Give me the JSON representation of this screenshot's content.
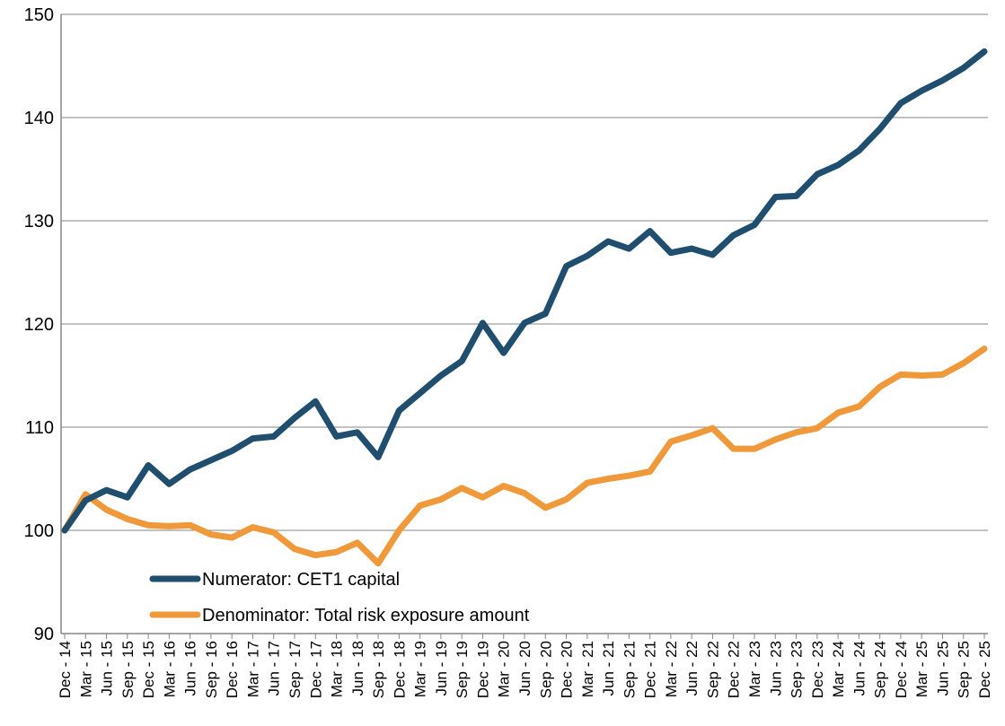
{
  "chart_data": {
    "type": "line",
    "title": "",
    "xlabel": "",
    "ylabel": "",
    "ylim": [
      90,
      150
    ],
    "yticks": [
      90,
      100,
      110,
      120,
      130,
      140,
      150
    ],
    "grid": "horizontal",
    "legend_position": "bottom-left",
    "x": [
      "Dec - 14",
      "Mar - 15",
      "Jun - 15",
      "Sep - 15",
      "Dec - 15",
      "Mar - 16",
      "Jun - 16",
      "Sep - 16",
      "Dec - 16",
      "Mar - 17",
      "Jun - 17",
      "Sep - 17",
      "Dec - 17",
      "Mar - 18",
      "Jun - 18",
      "Sep - 18",
      "Dec - 18",
      "Mar - 19",
      "Jun - 19",
      "Sep - 19",
      "Dec - 19",
      "Mar - 20",
      "Jun - 20",
      "Sep - 20",
      "Dec - 20",
      "Mar - 21",
      "Jun - 21",
      "Sep - 21",
      "Dec - 21",
      "Mar - 22",
      "Jun - 22",
      "Sep - 22",
      "Dec - 22",
      "Mar - 23",
      "Jun - 23",
      "Sep - 23",
      "Dec - 23",
      "Mar - 24",
      "Jun - 24",
      "Sep - 24",
      "Dec - 24",
      "Mar - 25",
      "Jun - 25",
      "Sep - 25",
      "Dec - 25"
    ],
    "series": [
      {
        "name": "Numerator: CET1 capital",
        "color": "#1f4e6e",
        "values": [
          100,
          102.9,
          103.9,
          103.2,
          106.3,
          104.5,
          105.9,
          106.8,
          107.7,
          108.9,
          109.1,
          110.9,
          112.5,
          109.1,
          109.5,
          107.1,
          111.6,
          113.3,
          115.0,
          116.4,
          120.1,
          117.2,
          120.1,
          121.0,
          125.6,
          126.6,
          128.0,
          127.3,
          129.0,
          126.9,
          127.3,
          126.7,
          128.6,
          129.6,
          132.3,
          132.4,
          134.5,
          135.4,
          136.8,
          138.9,
          141.4,
          142.6,
          143.6,
          144.8,
          146.4
        ]
      },
      {
        "name": "Denominator: Total risk exposure amount",
        "color": "#f0993a",
        "values": [
          100,
          103.5,
          102.0,
          101.1,
          100.5,
          100.4,
          100.5,
          99.6,
          99.3,
          100.3,
          99.8,
          98.2,
          97.6,
          97.9,
          98.8,
          96.8,
          100.0,
          102.4,
          103.0,
          104.1,
          103.2,
          104.3,
          103.6,
          102.2,
          103.0,
          104.6,
          105.0,
          105.3,
          105.7,
          108.6,
          109.2,
          109.9,
          107.9,
          107.9,
          108.8,
          109.5,
          109.9,
          111.4,
          112.0,
          113.9,
          115.1,
          115.0,
          115.1,
          116.2,
          117.6
        ]
      }
    ]
  }
}
